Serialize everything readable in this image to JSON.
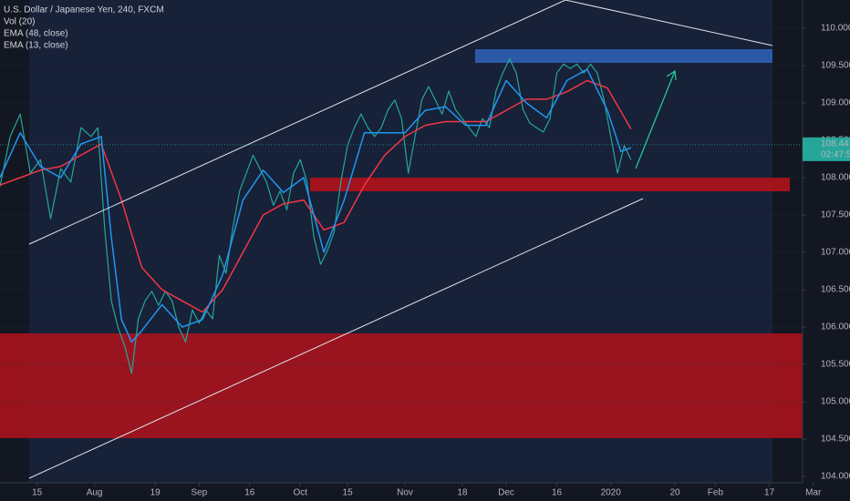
{
  "chart_data": {
    "type": "line",
    "title": "U.S. Dollar / Japanese Yen, 240, FXCM",
    "indicators": [
      "Vol (20)"
    ],
    "color": "#26a69a",
    "x": [
      3,
      6,
      9,
      12,
      15,
      18,
      21,
      24,
      27,
      30,
      32,
      34,
      36,
      38,
      40,
      42,
      44,
      46,
      48,
      50,
      52,
      54,
      56,
      58,
      60,
      62,
      64,
      66,
      68,
      70,
      72,
      74,
      76,
      78,
      80,
      82,
      84,
      86,
      88,
      90,
      92,
      94,
      96,
      98,
      100,
      102,
      104,
      106,
      108,
      110,
      112,
      114,
      116,
      118,
      120,
      122,
      124,
      126,
      128,
      130,
      132,
      134,
      136,
      138,
      140,
      142,
      144,
      146,
      148,
      150,
      152,
      154,
      156,
      158,
      160,
      162,
      164,
      166,
      168,
      170,
      172,
      174,
      176,
      178,
      180,
      182,
      184,
      186,
      188,
      190
    ],
    "values": [
      107.88,
      108.55,
      108.85,
      108.06,
      108.24,
      107.45,
      108.12,
      107.94,
      108.67,
      108.55,
      108.67,
      107.33,
      106.35,
      105.99,
      105.74,
      105.38,
      106.11,
      106.35,
      106.48,
      106.29,
      106.48,
      106.35,
      105.99,
      105.8,
      106.23,
      106.05,
      106.23,
      106.11,
      106.96,
      106.72,
      107.33,
      107.82,
      108.06,
      108.3,
      108.12,
      107.94,
      107.63,
      107.82,
      107.57,
      108.06,
      108.24,
      107.94,
      107.21,
      106.84,
      107.02,
      107.27,
      107.94,
      108.43,
      108.67,
      108.85,
      108.67,
      108.55,
      108.67,
      108.91,
      109.04,
      108.79,
      108.06,
      108.55,
      109.04,
      109.22,
      109.04,
      108.85,
      109.16,
      108.91,
      108.79,
      108.67,
      108.55,
      108.79,
      108.67,
      109.16,
      109.4,
      109.59,
      109.4,
      108.91,
      108.73,
      108.67,
      108.61,
      108.79,
      109.4,
      109.52,
      109.46,
      109.52,
      109.4,
      109.52,
      109.4,
      109.04,
      108.55,
      108.06,
      108.43,
      108.24
    ],
    "series": [
      {
        "name": "EMA (48, close)",
        "color": "#f23645",
        "x": [
          3,
          9,
          15,
          21,
          27,
          33,
          39,
          45,
          51,
          57,
          63,
          69,
          75,
          81,
          87,
          93,
          99,
          105,
          111,
          117,
          123,
          129,
          135,
          141,
          147,
          153,
          159,
          165,
          171,
          177,
          183,
          190
        ],
        "values": [
          107.9,
          108.0,
          108.1,
          108.15,
          108.3,
          108.45,
          107.7,
          106.8,
          106.5,
          106.35,
          106.2,
          106.5,
          107.0,
          107.5,
          107.65,
          107.7,
          107.3,
          107.4,
          107.9,
          108.3,
          108.55,
          108.7,
          108.75,
          108.75,
          108.75,
          108.9,
          109.05,
          109.05,
          109.15,
          109.3,
          109.2,
          108.65
        ]
      },
      {
        "name": "EMA (13, close)",
        "color": "#2196f3",
        "x": [
          3,
          9,
          15,
          21,
          27,
          33,
          36,
          39,
          42,
          45,
          51,
          57,
          63,
          69,
          75,
          81,
          87,
          93,
          99,
          105,
          111,
          117,
          123,
          129,
          135,
          141,
          147,
          153,
          159,
          165,
          171,
          177,
          183,
          187,
          190
        ],
        "values": [
          108.0,
          108.6,
          108.15,
          108.0,
          108.45,
          108.55,
          107.2,
          106.1,
          105.8,
          105.95,
          106.3,
          106.0,
          106.1,
          106.7,
          107.7,
          108.1,
          107.8,
          108.0,
          107.0,
          107.7,
          108.6,
          108.6,
          108.6,
          108.9,
          108.95,
          108.7,
          108.7,
          109.3,
          109.0,
          108.8,
          109.3,
          109.45,
          108.9,
          108.35,
          108.4
        ]
      }
    ],
    "xlim": [
      3,
      241
    ],
    "xticks": [
      {
        "value": 14,
        "label": "15"
      },
      {
        "value": 31,
        "label": "Aug"
      },
      {
        "value": 49,
        "label": "19"
      },
      {
        "value": 62,
        "label": "Sep"
      },
      {
        "value": 77,
        "label": "16"
      },
      {
        "value": 92,
        "label": "Oct"
      },
      {
        "value": 106,
        "label": "15"
      },
      {
        "value": 123,
        "label": "Nov"
      },
      {
        "value": 140,
        "label": "18"
      },
      {
        "value": 153,
        "label": "Dec"
      },
      {
        "value": 168,
        "label": "16"
      },
      {
        "value": 184,
        "label": "2020"
      },
      {
        "value": 203,
        "label": "20"
      },
      {
        "value": 215,
        "label": "Feb"
      },
      {
        "value": 231,
        "label": "17"
      },
      {
        "value": 244,
        "label": "Mar"
      }
    ],
    "ylim": [
      103.915,
      110.378
    ],
    "yticks": [
      {
        "value": 104,
        "label": "104.000"
      },
      {
        "value": 104.5,
        "label": "104.500"
      },
      {
        "value": 105,
        "label": "105.000"
      },
      {
        "value": 105.5,
        "label": "105.500"
      },
      {
        "value": 106,
        "label": "106.000"
      },
      {
        "value": 106.5,
        "label": "106.500"
      },
      {
        "value": 107,
        "label": "107.000"
      },
      {
        "value": 107.5,
        "label": "107.500"
      },
      {
        "value": 108,
        "label": "108.000"
      },
      {
        "value": 108.5,
        "label": "108.500"
      },
      {
        "value": 109,
        "label": "109.000"
      },
      {
        "value": 109.5,
        "label": "109.500"
      },
      {
        "value": 110,
        "label": "110.000"
      }
    ],
    "last_price": 108.441,
    "countdown": "02:47:51"
  }
}
